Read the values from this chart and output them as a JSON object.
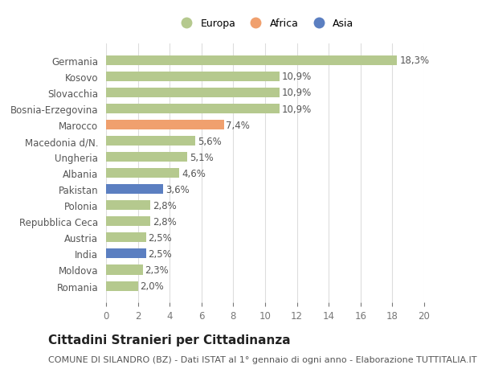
{
  "categories": [
    "Romania",
    "Moldova",
    "India",
    "Austria",
    "Repubblica Ceca",
    "Polonia",
    "Pakistan",
    "Albania",
    "Ungheria",
    "Macedonia d/N.",
    "Marocco",
    "Bosnia-Erzegovina",
    "Slovacchia",
    "Kosovo",
    "Germania"
  ],
  "values": [
    2.0,
    2.3,
    2.5,
    2.5,
    2.8,
    2.8,
    3.6,
    4.6,
    5.1,
    5.6,
    7.4,
    10.9,
    10.9,
    10.9,
    18.3
  ],
  "labels": [
    "2,0%",
    "2,3%",
    "2,5%",
    "2,5%",
    "2,8%",
    "2,8%",
    "3,6%",
    "4,6%",
    "5,1%",
    "5,6%",
    "7,4%",
    "10,9%",
    "10,9%",
    "10,9%",
    "18,3%"
  ],
  "continents": [
    "Europa",
    "Europa",
    "Asia",
    "Europa",
    "Europa",
    "Europa",
    "Asia",
    "Europa",
    "Europa",
    "Europa",
    "Africa",
    "Europa",
    "Europa",
    "Europa",
    "Europa"
  ],
  "colors": {
    "Europa": "#b5c98e",
    "Africa": "#f0a06e",
    "Asia": "#5b7fc1"
  },
  "legend_order": [
    "Europa",
    "Africa",
    "Asia"
  ],
  "xlim": [
    0,
    20
  ],
  "xticks": [
    0,
    2,
    4,
    6,
    8,
    10,
    12,
    14,
    16,
    18,
    20
  ],
  "title": "Cittadini Stranieri per Cittadinanza",
  "subtitle": "COMUNE DI SILANDRO (BZ) - Dati ISTAT al 1° gennaio di ogni anno - Elaborazione TUTTITALIA.IT",
  "background_color": "#ffffff",
  "bar_height": 0.6,
  "grid_color": "#dddddd",
  "label_fontsize": 8.5,
  "tick_fontsize": 8.5,
  "title_fontsize": 11,
  "subtitle_fontsize": 8
}
